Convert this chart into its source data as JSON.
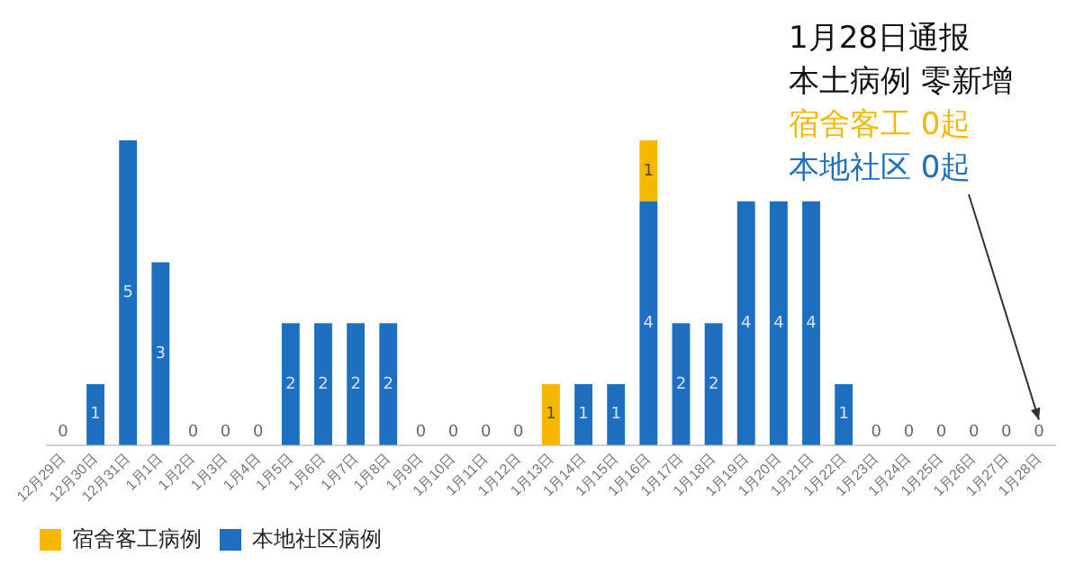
{
  "chart_data": {
    "type": "bar",
    "stacked": true,
    "categories": [
      "12月29日",
      "12月30日",
      "12月31日",
      "1月1日",
      "1月2日",
      "1月3日",
      "1月4日",
      "1月5日",
      "1月6日",
      "1月7日",
      "1月8日",
      "1月9日",
      "1月10日",
      "1月11日",
      "1月12日",
      "1月13日",
      "1月14日",
      "1月15日",
      "1月16日",
      "1月17日",
      "1月18日",
      "1月19日",
      "1月20日",
      "1月21日",
      "1月22日",
      "1月23日",
      "1月24日",
      "1月25日",
      "1月26日",
      "1月27日",
      "1月28日"
    ],
    "series": [
      {
        "name": "本地社区病例",
        "color": "#1f6fc0",
        "values": [
          0,
          1,
          5,
          3,
          0,
          0,
          0,
          2,
          2,
          2,
          2,
          0,
          0,
          0,
          0,
          0,
          1,
          1,
          4,
          2,
          2,
          4,
          4,
          4,
          1,
          0,
          0,
          0,
          0,
          0,
          0
        ],
        "value_labels": [
          "0",
          "1",
          "5",
          "3",
          "0",
          "0",
          "0",
          "2",
          "2",
          "2",
          "2",
          "0",
          "0",
          "0",
          "0",
          null,
          "1",
          "1",
          "4",
          "2",
          "2",
          "4",
          "4",
          "4",
          "1",
          "0",
          "0",
          "0",
          "0",
          "0",
          "0"
        ]
      },
      {
        "name": "宿舍客工病例",
        "color": "#f5b800",
        "values": [
          0,
          0,
          0,
          0,
          0,
          0,
          0,
          0,
          0,
          0,
          0,
          0,
          0,
          0,
          0,
          1,
          0,
          0,
          1,
          0,
          0,
          0,
          0,
          0,
          0,
          0,
          0,
          0,
          0,
          0,
          0
        ],
        "value_labels": [
          null,
          null,
          null,
          null,
          null,
          null,
          null,
          null,
          null,
          null,
          null,
          null,
          null,
          null,
          null,
          "1",
          null,
          null,
          "1",
          null,
          null,
          null,
          null,
          null,
          null,
          null,
          null,
          null,
          null,
          null,
          null
        ]
      }
    ],
    "annotations": [
      "1月28日通报",
      "本土病例 零新增",
      "宿舍客工 0起",
      "本地社区 0起"
    ],
    "legend": "bottom left",
    "tick_labels": "x",
    "grid": false
  }
}
